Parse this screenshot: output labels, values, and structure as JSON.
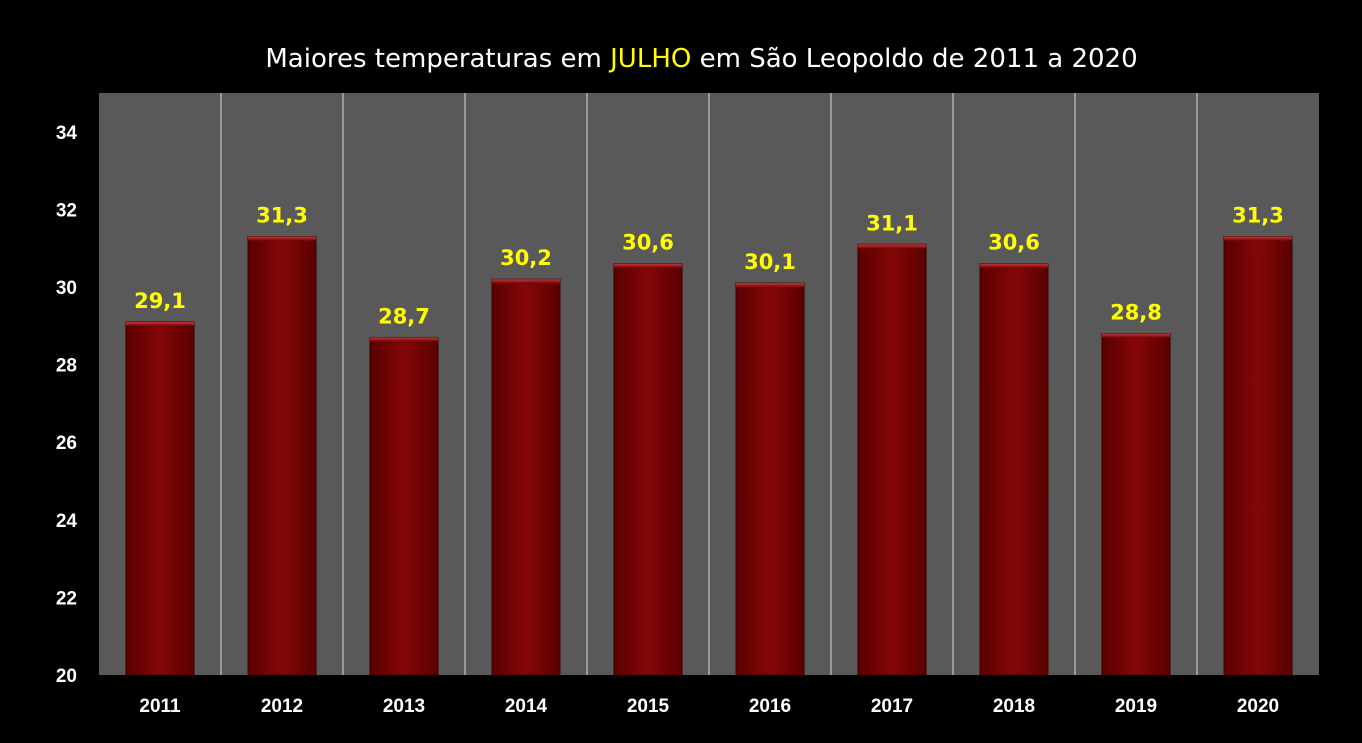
{
  "chart_data": {
    "type": "bar",
    "title": {
      "prefix": "Maiores temperaturas em ",
      "highlight": "JULHO",
      "suffix": " em São Leopoldo de 2011 a 2020"
    },
    "categories": [
      "2011",
      "2012",
      "2013",
      "2014",
      "2015",
      "2016",
      "2017",
      "2018",
      "2019",
      "2020"
    ],
    "values": [
      29.1,
      31.3,
      28.7,
      30.2,
      30.6,
      30.1,
      31.1,
      30.6,
      28.8,
      31.3
    ],
    "value_labels": [
      "29,1",
      "31,3",
      "28,7",
      "30,2",
      "30,6",
      "30,1",
      "31,1",
      "30,6",
      "28,8",
      "31,3"
    ],
    "ylim": [
      20,
      35
    ],
    "yticks": [
      20,
      22,
      24,
      26,
      28,
      30,
      32,
      34
    ],
    "grid": "vertical separators between categories",
    "legend": "none",
    "colors": {
      "background": "#000000",
      "plot_area": "#595959",
      "bar": "#7f0505",
      "bar_edge": "#3a0000",
      "data_label": "#ffff00",
      "title_highlight": "#ffff00",
      "text": "#ffffff"
    }
  }
}
